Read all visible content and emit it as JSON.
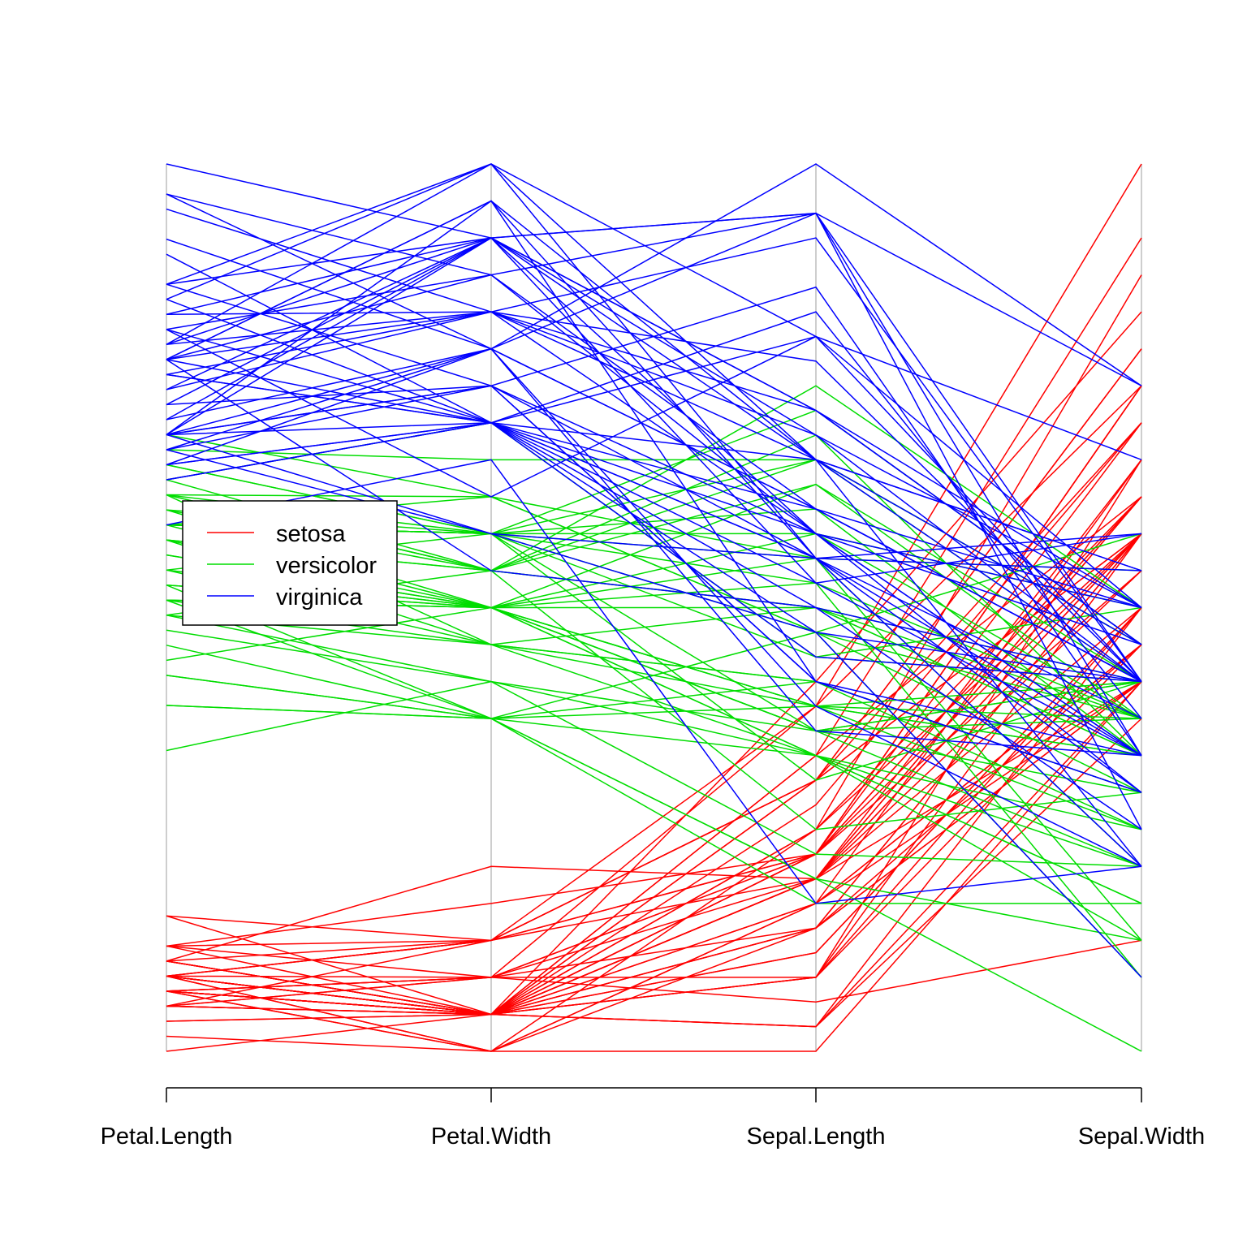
{
  "chart_data": {
    "type": "parallel_coordinates",
    "title": "",
    "axes": [
      "Petal.Length",
      "Petal.Width",
      "Sepal.Length",
      "Sepal.Width"
    ],
    "axis_ranges": {
      "Petal.Length": [
        1.0,
        6.9
      ],
      "Petal.Width": [
        0.1,
        2.5
      ],
      "Sepal.Length": [
        4.3,
        7.9
      ],
      "Sepal.Width": [
        2.0,
        4.4
      ]
    },
    "grid": false,
    "legend": {
      "position": "left-middle",
      "entries": [
        {
          "label": "setosa",
          "color": "#ff0000"
        },
        {
          "label": "versicolor",
          "color": "#00dd00"
        },
        {
          "label": "virginica",
          "color": "#0000ff"
        }
      ]
    },
    "series": [
      {
        "name": "setosa",
        "color": "#ff0000",
        "rows": [
          [
            1.4,
            0.2,
            5.1,
            3.5
          ],
          [
            1.4,
            0.2,
            4.9,
            3.0
          ],
          [
            1.3,
            0.2,
            4.7,
            3.2
          ],
          [
            1.5,
            0.2,
            4.6,
            3.1
          ],
          [
            1.4,
            0.2,
            5.0,
            3.6
          ],
          [
            1.7,
            0.4,
            5.4,
            3.9
          ],
          [
            1.4,
            0.3,
            4.6,
            3.4
          ],
          [
            1.5,
            0.2,
            5.0,
            3.4
          ],
          [
            1.4,
            0.2,
            4.4,
            2.9
          ],
          [
            1.5,
            0.1,
            4.9,
            3.1
          ],
          [
            1.5,
            0.2,
            5.4,
            3.7
          ],
          [
            1.6,
            0.2,
            4.8,
            3.4
          ],
          [
            1.4,
            0.1,
            4.8,
            3.0
          ],
          [
            1.1,
            0.1,
            4.3,
            3.0
          ],
          [
            1.2,
            0.2,
            5.8,
            4.0
          ],
          [
            1.5,
            0.4,
            5.7,
            4.4
          ],
          [
            1.3,
            0.4,
            5.4,
            3.9
          ],
          [
            1.4,
            0.3,
            5.1,
            3.5
          ],
          [
            1.7,
            0.3,
            5.7,
            3.8
          ],
          [
            1.5,
            0.3,
            5.1,
            3.8
          ],
          [
            1.7,
            0.2,
            5.4,
            3.4
          ],
          [
            1.5,
            0.4,
            5.1,
            3.7
          ],
          [
            1.0,
            0.2,
            4.6,
            3.6
          ],
          [
            1.7,
            0.5,
            5.1,
            3.3
          ],
          [
            1.9,
            0.2,
            4.8,
            3.4
          ],
          [
            1.6,
            0.2,
            5.0,
            3.0
          ],
          [
            1.6,
            0.4,
            5.0,
            3.4
          ],
          [
            1.5,
            0.2,
            5.2,
            3.5
          ],
          [
            1.4,
            0.2,
            5.2,
            3.4
          ],
          [
            1.6,
            0.2,
            4.7,
            3.2
          ],
          [
            1.6,
            0.2,
            4.8,
            3.1
          ],
          [
            1.5,
            0.4,
            5.4,
            3.4
          ],
          [
            1.5,
            0.1,
            5.2,
            4.1
          ],
          [
            1.4,
            0.2,
            5.5,
            4.2
          ],
          [
            1.5,
            0.2,
            4.9,
            3.1
          ],
          [
            1.2,
            0.2,
            5.0,
            3.2
          ],
          [
            1.3,
            0.2,
            5.5,
            3.5
          ],
          [
            1.4,
            0.1,
            4.9,
            3.6
          ],
          [
            1.3,
            0.2,
            4.4,
            3.0
          ],
          [
            1.5,
            0.2,
            5.1,
            3.4
          ],
          [
            1.3,
            0.3,
            5.0,
            3.5
          ],
          [
            1.3,
            0.3,
            4.5,
            2.3
          ],
          [
            1.3,
            0.2,
            4.4,
            3.2
          ],
          [
            1.6,
            0.6,
            5.0,
            3.5
          ],
          [
            1.9,
            0.4,
            5.1,
            3.8
          ],
          [
            1.4,
            0.3,
            4.8,
            3.0
          ],
          [
            1.6,
            0.2,
            5.1,
            3.8
          ],
          [
            1.4,
            0.2,
            4.6,
            3.2
          ],
          [
            1.5,
            0.2,
            5.3,
            3.7
          ],
          [
            1.4,
            0.2,
            5.0,
            3.3
          ]
        ]
      },
      {
        "name": "versicolor",
        "color": "#00dd00",
        "rows": [
          [
            4.7,
            1.4,
            7.0,
            3.2
          ],
          [
            4.5,
            1.5,
            6.4,
            3.2
          ],
          [
            4.9,
            1.5,
            6.9,
            3.1
          ],
          [
            4.0,
            1.3,
            5.5,
            2.3
          ],
          [
            4.6,
            1.5,
            6.5,
            2.8
          ],
          [
            4.5,
            1.3,
            5.7,
            2.8
          ],
          [
            4.7,
            1.6,
            6.3,
            3.3
          ],
          [
            3.3,
            1.0,
            4.9,
            2.4
          ],
          [
            4.6,
            1.3,
            6.6,
            2.9
          ],
          [
            3.9,
            1.4,
            5.2,
            2.7
          ],
          [
            3.5,
            1.0,
            5.0,
            2.0
          ],
          [
            4.2,
            1.5,
            5.9,
            3.0
          ],
          [
            4.0,
            1.0,
            6.0,
            2.2
          ],
          [
            4.7,
            1.4,
            6.1,
            2.9
          ],
          [
            3.6,
            1.3,
            5.6,
            2.9
          ],
          [
            4.4,
            1.4,
            6.7,
            3.1
          ],
          [
            4.5,
            1.5,
            5.6,
            3.0
          ],
          [
            4.1,
            1.0,
            5.8,
            2.7
          ],
          [
            4.5,
            1.5,
            6.2,
            2.2
          ],
          [
            3.9,
            1.1,
            5.6,
            2.5
          ],
          [
            4.8,
            1.8,
            5.9,
            3.2
          ],
          [
            4.0,
            1.3,
            6.1,
            2.8
          ],
          [
            4.9,
            1.5,
            6.3,
            2.5
          ],
          [
            4.7,
            1.2,
            6.1,
            2.8
          ],
          [
            4.3,
            1.3,
            6.4,
            2.9
          ],
          [
            4.4,
            1.4,
            6.6,
            3.0
          ],
          [
            4.8,
            1.4,
            6.8,
            2.8
          ],
          [
            5.0,
            1.7,
            6.7,
            3.0
          ],
          [
            4.5,
            1.5,
            6.0,
            2.9
          ],
          [
            3.5,
            1.0,
            5.7,
            2.6
          ],
          [
            3.8,
            1.1,
            5.5,
            2.4
          ],
          [
            3.7,
            1.0,
            5.5,
            2.4
          ],
          [
            3.9,
            1.2,
            5.8,
            2.7
          ],
          [
            5.1,
            1.6,
            6.0,
            2.7
          ],
          [
            4.5,
            1.5,
            5.4,
            3.0
          ],
          [
            4.5,
            1.6,
            6.0,
            3.4
          ],
          [
            4.7,
            1.5,
            6.7,
            3.1
          ],
          [
            4.4,
            1.3,
            6.3,
            2.3
          ],
          [
            4.1,
            1.3,
            5.6,
            3.0
          ],
          [
            4.0,
            1.3,
            5.5,
            2.5
          ],
          [
            4.4,
            1.2,
            5.5,
            2.6
          ],
          [
            4.6,
            1.4,
            6.1,
            3.0
          ],
          [
            4.0,
            1.2,
            5.8,
            2.6
          ],
          [
            3.3,
            1.0,
            5.0,
            2.3
          ],
          [
            4.2,
            1.3,
            5.6,
            2.7
          ],
          [
            4.2,
            1.2,
            5.7,
            3.0
          ],
          [
            4.2,
            1.3,
            5.7,
            2.9
          ],
          [
            4.3,
            1.3,
            6.2,
            2.9
          ],
          [
            3.0,
            1.1,
            5.1,
            2.5
          ],
          [
            4.1,
            1.3,
            5.7,
            2.8
          ]
        ]
      },
      {
        "name": "virginica",
        "color": "#0000ff",
        "rows": [
          [
            6.0,
            2.5,
            6.3,
            3.3
          ],
          [
            5.1,
            1.9,
            5.8,
            2.7
          ],
          [
            5.9,
            2.1,
            7.1,
            3.0
          ],
          [
            5.6,
            1.8,
            6.3,
            2.9
          ],
          [
            5.8,
            2.2,
            6.5,
            3.0
          ],
          [
            6.6,
            2.1,
            7.6,
            3.0
          ],
          [
            4.5,
            1.7,
            4.9,
            2.5
          ],
          [
            6.3,
            1.8,
            7.3,
            2.9
          ],
          [
            5.8,
            1.8,
            6.7,
            2.5
          ],
          [
            6.1,
            2.5,
            7.2,
            3.6
          ],
          [
            5.1,
            2.0,
            6.5,
            3.2
          ],
          [
            5.3,
            1.9,
            6.4,
            2.7
          ],
          [
            5.5,
            2.1,
            6.8,
            3.0
          ],
          [
            5.0,
            2.0,
            5.7,
            2.5
          ],
          [
            5.1,
            2.4,
            5.8,
            2.8
          ],
          [
            5.3,
            2.3,
            6.4,
            3.2
          ],
          [
            5.5,
            1.8,
            6.5,
            3.0
          ],
          [
            6.7,
            2.2,
            7.7,
            3.8
          ],
          [
            6.9,
            2.3,
            7.7,
            2.6
          ],
          [
            5.0,
            1.5,
            6.0,
            2.2
          ],
          [
            5.7,
            2.3,
            6.9,
            3.2
          ],
          [
            4.9,
            2.0,
            5.6,
            2.8
          ],
          [
            6.7,
            2.0,
            7.7,
            2.8
          ],
          [
            4.9,
            1.8,
            6.3,
            2.7
          ],
          [
            5.7,
            2.1,
            6.7,
            3.3
          ],
          [
            6.0,
            1.8,
            7.2,
            3.2
          ],
          [
            4.8,
            1.8,
            6.2,
            2.8
          ],
          [
            4.9,
            1.8,
            6.1,
            3.0
          ],
          [
            5.6,
            2.1,
            6.4,
            2.8
          ],
          [
            5.8,
            1.6,
            7.2,
            3.0
          ],
          [
            6.1,
            1.9,
            7.4,
            2.8
          ],
          [
            6.4,
            2.0,
            7.9,
            3.8
          ],
          [
            5.6,
            2.2,
            6.4,
            2.8
          ],
          [
            5.1,
            1.5,
            6.3,
            2.8
          ],
          [
            5.6,
            1.4,
            6.1,
            2.6
          ],
          [
            6.1,
            2.3,
            7.7,
            3.0
          ],
          [
            5.6,
            2.4,
            6.3,
            3.4
          ],
          [
            5.5,
            1.8,
            6.4,
            3.1
          ],
          [
            4.8,
            1.8,
            6.0,
            3.0
          ],
          [
            5.4,
            2.1,
            6.9,
            3.1
          ],
          [
            5.6,
            2.4,
            6.7,
            3.1
          ],
          [
            5.1,
            2.3,
            6.9,
            3.1
          ],
          [
            5.1,
            1.9,
            5.8,
            2.7
          ],
          [
            5.9,
            2.3,
            6.8,
            3.2
          ],
          [
            5.7,
            2.5,
            6.7,
            3.3
          ],
          [
            5.2,
            2.3,
            6.7,
            3.0
          ],
          [
            5.0,
            1.9,
            6.3,
            2.5
          ],
          [
            5.2,
            2.0,
            6.5,
            3.0
          ],
          [
            5.4,
            2.3,
            6.2,
            3.4
          ],
          [
            5.1,
            1.8,
            5.9,
            3.0
          ]
        ]
      }
    ]
  }
}
